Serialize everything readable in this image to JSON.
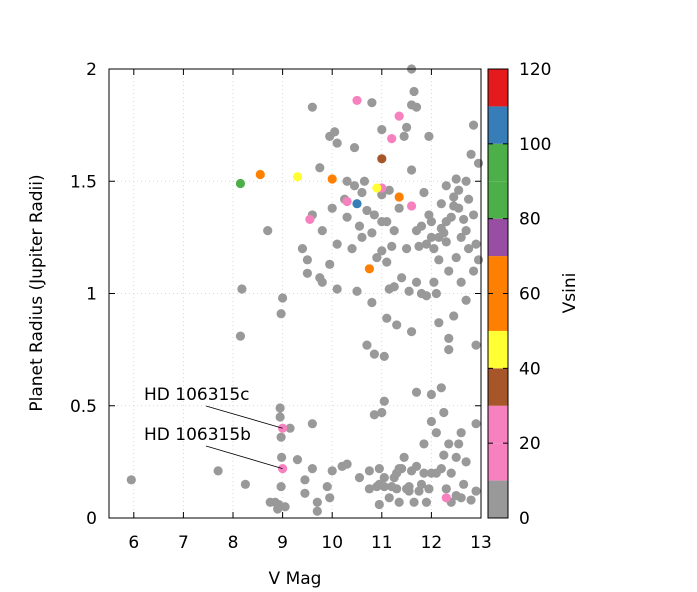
{
  "chart_data": {
    "type": "scatter",
    "title": "",
    "xlabel": "V Mag",
    "ylabel": "Planet Radius (Jupiter Radii)",
    "xlim": [
      5.5,
      13
    ],
    "ylim": [
      0,
      2
    ],
    "xticks": [
      6,
      7,
      8,
      9,
      10,
      11,
      12,
      13
    ],
    "yticks": [
      0,
      0.5,
      1,
      1.5,
      2
    ],
    "xtick_labels": [
      "6",
      "7",
      "8",
      "9",
      "10",
      "11",
      "12",
      "13"
    ],
    "ytick_labels": [
      "0",
      "0.5",
      "1",
      "1.5",
      "2"
    ],
    "grid": true,
    "colorbar": {
      "label": "Vsini",
      "min": 0,
      "max": 120,
      "ticks": [
        0,
        20,
        40,
        60,
        80,
        100,
        120
      ],
      "tick_labels": [
        "0",
        "20",
        "40",
        "60",
        "80",
        "100",
        "120"
      ],
      "bins": [
        {
          "from": 0,
          "to": 10,
          "color": "#999999"
        },
        {
          "from": 10,
          "to": 20,
          "color": "#f781bf"
        },
        {
          "from": 20,
          "to": 30,
          "color": "#f781bf"
        },
        {
          "from": 30,
          "to": 40,
          "color": "#a65628"
        },
        {
          "from": 40,
          "to": 50,
          "color": "#ffff33"
        },
        {
          "from": 50,
          "to": 60,
          "color": "#ff7f00"
        },
        {
          "from": 60,
          "to": 70,
          "color": "#ff7f00"
        },
        {
          "from": 70,
          "to": 80,
          "color": "#984ea3"
        },
        {
          "from": 80,
          "to": 90,
          "color": "#4daf4a"
        },
        {
          "from": 90,
          "to": 100,
          "color": "#4daf4a"
        },
        {
          "from": 100,
          "to": 110,
          "color": "#377eb8"
        },
        {
          "from": 110,
          "to": 120,
          "color": "#e41a1c"
        }
      ]
    },
    "annotations": [
      {
        "text": "HD 106315c",
        "x": 9.0,
        "y": 0.4
      },
      {
        "text": "HD 106315b",
        "x": 9.0,
        "y": 0.22
      }
    ],
    "series": [
      {
        "color": "#999999",
        "points": [
          [
            5.95,
            0.17
          ],
          [
            7.7,
            0.21
          ],
          [
            8.15,
            0.81
          ],
          [
            8.18,
            1.02
          ],
          [
            8.25,
            0.15
          ],
          [
            8.7,
            1.28
          ],
          [
            8.75,
            0.07
          ],
          [
            8.85,
            0.07
          ],
          [
            8.9,
            0.04
          ],
          [
            8.92,
            0.06
          ],
          [
            8.95,
            0.49
          ],
          [
            8.95,
            0.45
          ],
          [
            8.97,
            0.36
          ],
          [
            8.98,
            0.27
          ],
          [
            8.97,
            0.14
          ],
          [
            8.97,
            0.91
          ],
          [
            9.0,
            0.98
          ],
          [
            9.15,
            0.4
          ],
          [
            9.3,
            0.26
          ],
          [
            9.4,
            1.2
          ],
          [
            9.45,
            0.11
          ],
          [
            9.5,
            1.09
          ],
          [
            9.5,
            1.15
          ],
          [
            9.6,
            0.22
          ],
          [
            9.6,
            0.42
          ],
          [
            9.6,
            1.35
          ],
          [
            9.7,
            0.07
          ],
          [
            9.7,
            0.03
          ],
          [
            9.75,
            1.07
          ],
          [
            9.75,
            1.56
          ],
          [
            9.8,
            1.05
          ],
          [
            9.8,
            1.28
          ],
          [
            9.9,
            0.14
          ],
          [
            9.95,
            1.7
          ],
          [
            9.95,
            0.09
          ],
          [
            9.95,
            1.13
          ],
          [
            10.0,
            1.38
          ],
          [
            10.05,
            1.72
          ],
          [
            10.0,
            0.21
          ],
          [
            10.1,
            1.02
          ],
          [
            10.1,
            1.67
          ],
          [
            10.1,
            1.22
          ],
          [
            10.2,
            0.23
          ],
          [
            10.25,
            1.42
          ],
          [
            10.3,
            1.34
          ],
          [
            10.3,
            0.24
          ],
          [
            10.3,
            1.5
          ],
          [
            9.6,
            1.83
          ],
          [
            10.45,
            1.48
          ],
          [
            10.4,
            1.2
          ],
          [
            10.45,
            1.65
          ],
          [
            10.5,
            1.01
          ],
          [
            10.55,
            1.3
          ],
          [
            10.6,
            1.45
          ],
          [
            10.6,
            1.25
          ],
          [
            10.65,
            1.5
          ],
          [
            10.7,
            1.37
          ],
          [
            10.75,
            0.21
          ],
          [
            10.8,
            1.27
          ],
          [
            10.8,
            0.96
          ],
          [
            10.8,
            1.85
          ],
          [
            10.85,
            1.35
          ],
          [
            10.9,
            1.16
          ],
          [
            10.9,
            0.14
          ],
          [
            10.95,
            0.15
          ],
          [
            10.95,
            0.22
          ],
          [
            11.0,
            1.19
          ],
          [
            11.0,
            1.32
          ],
          [
            11.0,
            1.44
          ],
          [
            11.0,
            1.73
          ],
          [
            11.05,
            0.18
          ],
          [
            11.05,
            0.14
          ],
          [
            11.1,
            1.32
          ],
          [
            11.1,
            1.14
          ],
          [
            11.1,
            0.89
          ],
          [
            11.15,
            1.46
          ],
          [
            11.15,
            1.02
          ],
          [
            11.2,
            1.21
          ],
          [
            11.2,
            0.14
          ],
          [
            11.25,
            1.03
          ],
          [
            11.25,
            1.28
          ],
          [
            11.3,
            0.86
          ],
          [
            11.3,
            0.13
          ],
          [
            11.3,
            0.2
          ],
          [
            11.35,
            0.07
          ],
          [
            11.35,
            1.38
          ],
          [
            11.4,
            1.07
          ],
          [
            11.4,
            0.22
          ],
          [
            11.45,
            1.7
          ],
          [
            11.5,
            1.2
          ],
          [
            11.5,
            0.13
          ],
          [
            11.5,
            1.74
          ],
          [
            11.55,
            0.14
          ],
          [
            11.55,
            1.01
          ],
          [
            11.6,
            0.83
          ],
          [
            11.6,
            1.55
          ],
          [
            11.6,
            1.84
          ],
          [
            11.6,
            0.21
          ],
          [
            11.65,
            1.9
          ],
          [
            11.7,
            1.28
          ],
          [
            11.7,
            1.05
          ],
          [
            11.7,
            0.56
          ],
          [
            11.75,
            1.21
          ],
          [
            11.75,
            0.12
          ],
          [
            11.8,
            1.3
          ],
          [
            11.8,
            1.0
          ],
          [
            11.85,
            1.45
          ],
          [
            11.85,
            0.33
          ],
          [
            11.85,
            0.2
          ],
          [
            11.9,
            1.22
          ],
          [
            11.9,
            0.99
          ],
          [
            11.95,
            1.7
          ],
          [
            11.95,
            1.35
          ],
          [
            11.95,
            0.13
          ],
          [
            12.0,
            1.25
          ],
          [
            12.0,
            0.55
          ],
          [
            12.05,
            1.2
          ],
          [
            12.05,
            1.05
          ],
          [
            12.1,
            0.38
          ],
          [
            12.1,
            0.2
          ],
          [
            12.15,
            1.15
          ],
          [
            12.15,
            0.87
          ],
          [
            12.2,
            1.4
          ],
          [
            12.2,
            0.58
          ],
          [
            12.2,
            1.29
          ],
          [
            12.25,
            0.47
          ],
          [
            12.25,
            0.28
          ],
          [
            12.3,
            0.13
          ],
          [
            12.35,
            1.1
          ],
          [
            12.35,
            0.8
          ],
          [
            12.35,
            0.75
          ],
          [
            12.4,
            1.34
          ],
          [
            12.4,
            0.2
          ],
          [
            12.45,
            1.39
          ],
          [
            12.45,
            0.9
          ],
          [
            12.5,
            1.16
          ],
          [
            12.5,
            0.27
          ],
          [
            12.55,
            1.46
          ],
          [
            12.55,
            0.33
          ],
          [
            12.6,
            1.25
          ],
          [
            12.6,
            1.05
          ],
          [
            12.65,
            0.15
          ],
          [
            12.7,
            1.5
          ],
          [
            12.7,
            0.97
          ],
          [
            12.75,
            1.2
          ],
          [
            12.8,
            1.62
          ],
          [
            12.85,
            1.75
          ],
          [
            12.85,
            1.1
          ],
          [
            12.9,
            0.77
          ],
          [
            12.9,
            0.42
          ],
          [
            12.9,
            0.12
          ],
          [
            12.95,
            1.58
          ],
          [
            10.7,
            0.77
          ],
          [
            10.85,
            0.73
          ],
          [
            11.05,
            0.72
          ],
          [
            11.0,
            0.47
          ],
          [
            11.05,
            0.52
          ],
          [
            10.85,
            0.46
          ],
          [
            11.6,
            2.0
          ],
          [
            11.7,
            1.83
          ],
          [
            10.55,
            0.18
          ],
          [
            10.75,
            0.13
          ],
          [
            9.45,
            0.17
          ],
          [
            9.05,
            0.05
          ],
          [
            12.0,
            1.32
          ],
          [
            12.3,
            1.23
          ],
          [
            12.1,
            1.0
          ],
          [
            12.0,
            0.43
          ],
          [
            11.7,
            0.23
          ],
          [
            12.4,
            0.07
          ],
          [
            12.6,
            0.09
          ],
          [
            12.8,
            0.08
          ],
          [
            12.5,
            0.1
          ],
          [
            12.7,
            0.25
          ],
          [
            12.35,
            0.33
          ],
          [
            12.2,
            0.22
          ],
          [
            12.6,
            0.38
          ],
          [
            12.3,
            1.48
          ],
          [
            12.5,
            1.51
          ],
          [
            12.45,
            1.43
          ],
          [
            12.55,
            1.38
          ],
          [
            12.65,
            1.33
          ],
          [
            12.7,
            1.28
          ],
          [
            12.75,
            1.42
          ],
          [
            12.85,
            1.35
          ],
          [
            12.9,
            1.22
          ],
          [
            12.95,
            1.15
          ],
          [
            12.3,
            1.32
          ],
          [
            12.25,
            1.27
          ],
          [
            12.15,
            1.25
          ],
          [
            11.35,
            0.22
          ],
          [
            11.45,
            0.27
          ],
          [
            11.55,
            0.12
          ],
          [
            11.25,
            0.18
          ],
          [
            11.15,
            0.09
          ],
          [
            10.95,
            0.06
          ],
          [
            11.65,
            0.07
          ],
          [
            11.9,
            0.07
          ],
          [
            11.8,
            0.15
          ],
          [
            12.0,
            0.2
          ]
        ]
      },
      {
        "color": "#f781bf",
        "points": [
          [
            9.0,
            0.4
          ],
          [
            9.0,
            0.22
          ],
          [
            9.55,
            1.33
          ],
          [
            10.3,
            1.41
          ],
          [
            10.5,
            1.86
          ],
          [
            11.0,
            1.47
          ],
          [
            11.2,
            1.69
          ],
          [
            11.35,
            1.79
          ],
          [
            11.6,
            1.39
          ],
          [
            12.3,
            0.09
          ]
        ]
      },
      {
        "color": "#a65628",
        "points": [
          [
            11.0,
            1.6
          ]
        ]
      },
      {
        "color": "#ffff33",
        "points": [
          [
            9.3,
            1.52
          ],
          [
            10.9,
            1.47
          ]
        ]
      },
      {
        "color": "#ff7f00",
        "points": [
          [
            8.55,
            1.53
          ],
          [
            10.0,
            1.51
          ],
          [
            10.75,
            1.11
          ],
          [
            11.35,
            1.43
          ]
        ]
      },
      {
        "color": "#4daf4a",
        "points": [
          [
            8.15,
            1.49
          ]
        ]
      },
      {
        "color": "#377eb8",
        "points": [
          [
            10.5,
            1.4
          ]
        ]
      }
    ]
  }
}
